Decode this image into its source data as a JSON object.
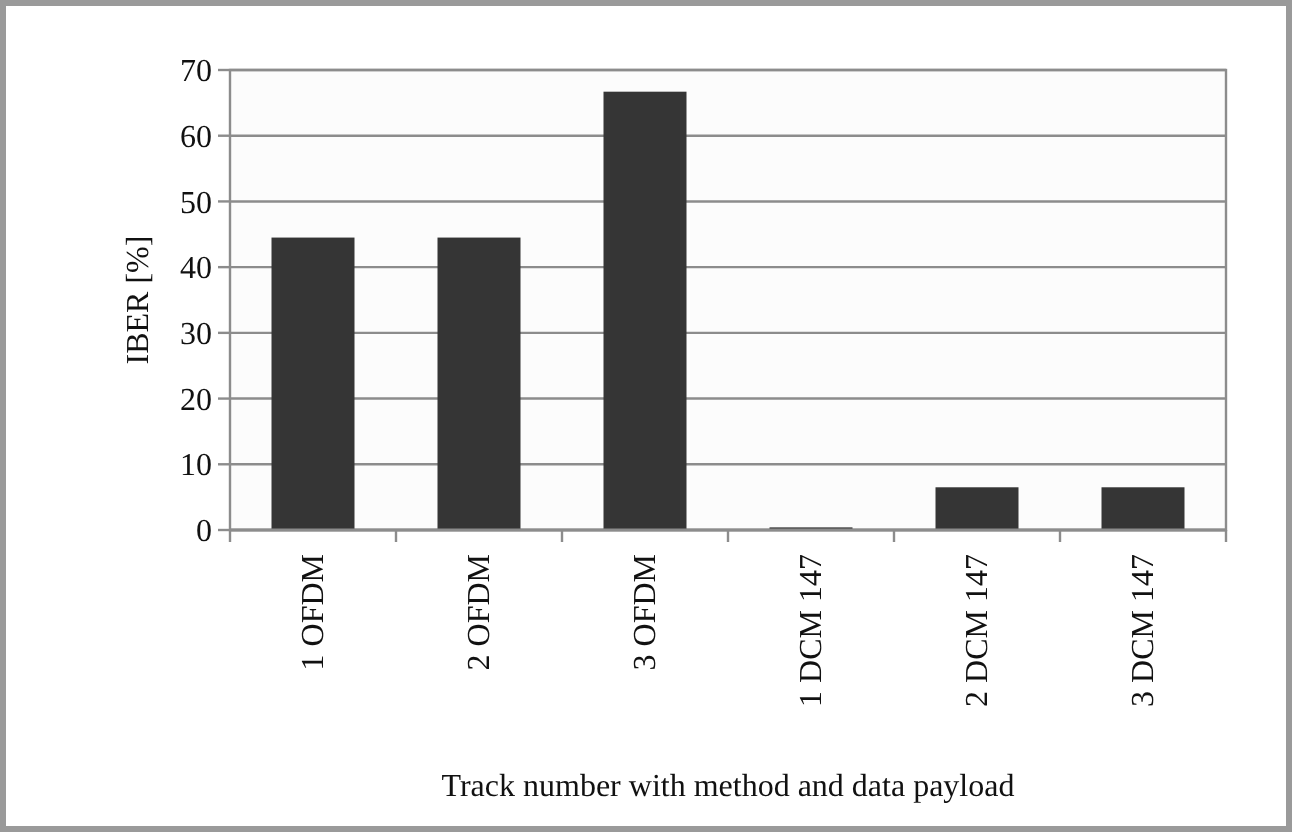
{
  "chart_data": {
    "type": "bar",
    "xlabel": "Track number with method and data payload",
    "ylabel": "IBER [%]",
    "categories": [
      "1 OFDM",
      "2 OFDM",
      "3 OFDM",
      "1 DCM 147",
      "2 DCM 147",
      "3 DCM 147"
    ],
    "values": [
      44.5,
      44.5,
      66.7,
      0.4,
      6.5,
      6.5
    ],
    "color": "#353535",
    "ylim": [
      0,
      70
    ],
    "yticks": [
      0,
      10,
      20,
      30,
      40,
      50,
      60,
      70
    ],
    "grid": "y"
  }
}
